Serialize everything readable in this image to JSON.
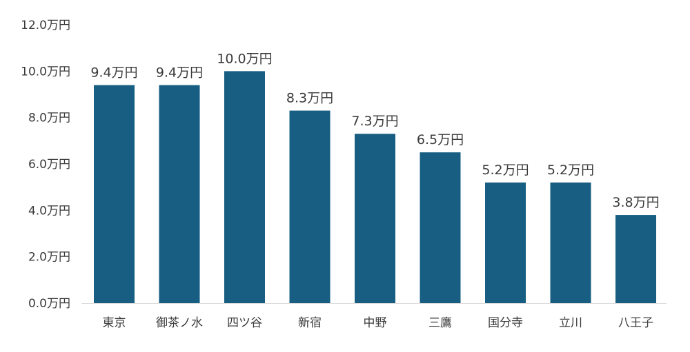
{
  "chart_data": {
    "type": "bar",
    "title": "",
    "xlabel": "",
    "ylabel": "",
    "ylim": [
      0,
      12
    ],
    "yticks": [
      0,
      2,
      4,
      6,
      8,
      10,
      12
    ],
    "ytick_labels": [
      "0.0万円",
      "2.0万円",
      "4.0万円",
      "6.0万円",
      "8.0万円",
      "10.0万円",
      "12.0万円"
    ],
    "categories": [
      "東京",
      "御茶ノ水",
      "四ツ谷",
      "新宿",
      "中野",
      "三鷹",
      "国分寺",
      "立川",
      "八王子"
    ],
    "values": [
      9.4,
      9.4,
      10.0,
      8.3,
      7.3,
      6.5,
      5.2,
      5.2,
      3.8
    ],
    "data_labels": [
      "9.4万円",
      "9.4万円",
      "10.0万円",
      "8.3万円",
      "7.3万円",
      "6.5万円",
      "5.2万円",
      "5.2万円",
      "3.8万円"
    ],
    "grid": false,
    "legend": "none",
    "colors": {
      "bar": "#175e82",
      "axis": "#d9d9d9",
      "text": "#3a3a3a"
    }
  }
}
